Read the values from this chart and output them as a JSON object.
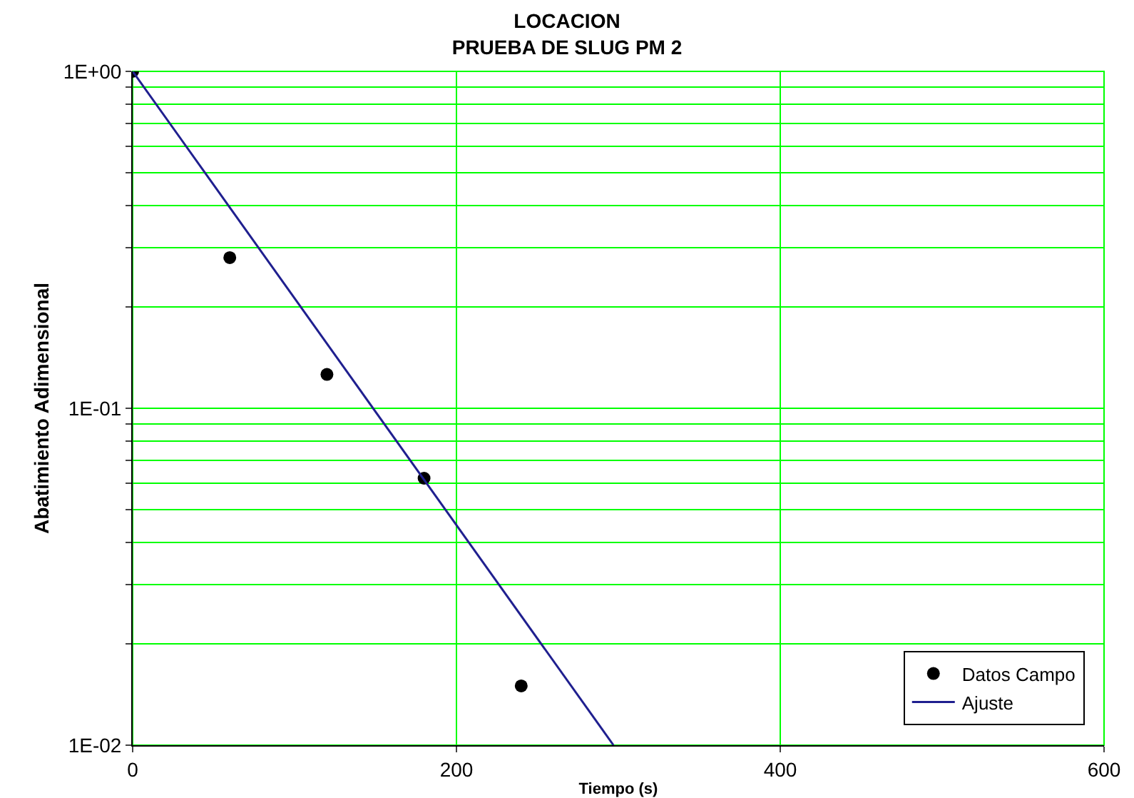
{
  "chart_data": {
    "type": "scatter",
    "title": "LOCACION\nPRUEBA DE SLUG PM 2",
    "xlabel": "Tiempo (s)",
    "ylabel": "Abatimiento Adimensional",
    "log": "y",
    "grid": true,
    "legend": "bottom right",
    "xlim": [
      0,
      600
    ],
    "xticks": [
      0,
      200,
      400,
      600
    ],
    "ylim": [
      0.01,
      1
    ],
    "yticks": [
      {
        "value": 0.01,
        "label": "1E-02"
      },
      {
        "value": 0.02,
        "label": null
      },
      {
        "value": 0.03,
        "label": null
      },
      {
        "value": 0.04,
        "label": null
      },
      {
        "value": 0.05,
        "label": null
      },
      {
        "value": 0.06,
        "label": null
      },
      {
        "value": 0.07,
        "label": null
      },
      {
        "value": 0.08,
        "label": null
      },
      {
        "value": 0.09,
        "label": null
      },
      {
        "value": 0.1,
        "label": "1E-01"
      },
      {
        "value": 0.2,
        "label": null
      },
      {
        "value": 0.3,
        "label": null
      },
      {
        "value": 0.4,
        "label": null
      },
      {
        "value": 0.5,
        "label": null
      },
      {
        "value": 0.6,
        "label": null
      },
      {
        "value": 0.7,
        "label": null
      },
      {
        "value": 0.8,
        "label": null
      },
      {
        "value": 0.9,
        "label": null
      },
      {
        "value": 1,
        "label": "1E+00"
      }
    ],
    "series": [
      {
        "name": "Datos Campo",
        "marker": "circle",
        "color": "#000000",
        "x": [
          0,
          60,
          120,
          180,
          240
        ],
        "values": [
          1,
          0.28,
          0.126,
          0.062,
          0.015
        ]
      },
      {
        "name": "Ajuste",
        "type": "line",
        "color": "#1f1f8f",
        "line_style": "solid",
        "x": [
          0,
          297
        ],
        "values": [
          1,
          0.01
        ]
      }
    ]
  }
}
